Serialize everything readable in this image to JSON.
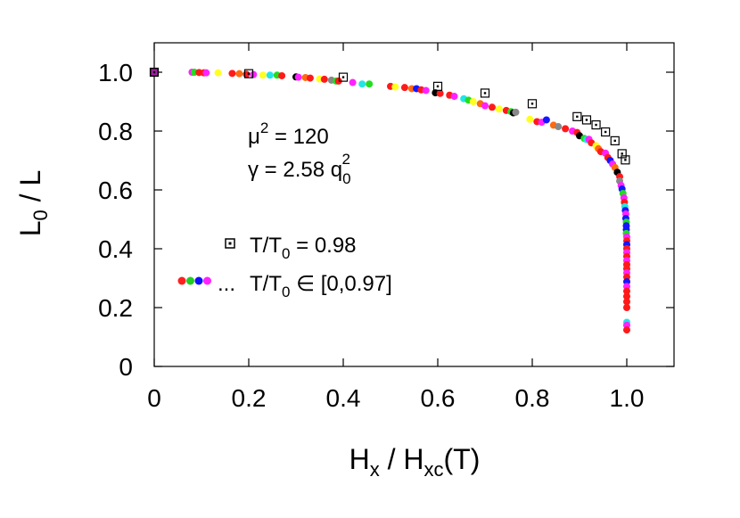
{
  "chart_data": {
    "type": "scatter",
    "xlabel": {
      "main": "H",
      "sub1": "x",
      "mid": " / H",
      "sub2": "xc",
      "tail": "(T)"
    },
    "ylabel": {
      "main": "L",
      "sub": "0",
      "tail": " / L"
    },
    "xlim": [
      0,
      1.1
    ],
    "ylim": [
      0,
      1.1
    ],
    "xticks": [
      {
        "value": 0,
        "label": "0"
      },
      {
        "value": 0.2,
        "label": "0.2"
      },
      {
        "value": 0.4,
        "label": "0.4"
      },
      {
        "value": 0.6,
        "label": "0.6"
      },
      {
        "value": 0.8,
        "label": "0.8"
      },
      {
        "value": 1.0,
        "label": "1.0"
      }
    ],
    "yticks": [
      {
        "value": 0,
        "label": "0"
      },
      {
        "value": 0.2,
        "label": "0.2"
      },
      {
        "value": 0.4,
        "label": "0.4"
      },
      {
        "value": 0.6,
        "label": "0.6"
      },
      {
        "value": 0.8,
        "label": "0.8"
      },
      {
        "value": 1.0,
        "label": "1.0"
      }
    ],
    "annotations": {
      "mu": {
        "symbol": "μ",
        "sup": "2",
        "rest": " = 120"
      },
      "gamma": {
        "symbol": "γ",
        "rest": " = 2.58 q",
        "sub": "0",
        "sup": "2"
      }
    },
    "legend": [
      {
        "marker": "open-square-dot",
        "label_main": "T/T",
        "label_sub": "0",
        "label_tail": " = 0.98"
      },
      {
        "marker": "multicolor-dots",
        "prefix": "...",
        "label_main": "T/T",
        "label_sub": "0",
        "label_tail": " ∈ [0,0.97]",
        "dot_colors": [
          "#ff2020",
          "#22cc22",
          "#1010ff",
          "#ff22ff"
        ]
      }
    ],
    "colors": {
      "red": "#ff1a1a",
      "green": "#22dd22",
      "blue": "#1515ff",
      "magenta": "#ff22ff",
      "cyan": "#22e5e5",
      "yellow": "#ffff22",
      "black": "#000000",
      "gray": "#888888",
      "orange": "#ff6a10",
      "purple": "#a020a0"
    },
    "series": [
      {
        "name": "T/T0 = 0.98",
        "marker": "open-square-dot",
        "points": [
          [
            0.0,
            1.0
          ],
          [
            0.2,
            0.995
          ],
          [
            0.4,
            0.983
          ],
          [
            0.6,
            0.952
          ],
          [
            0.7,
            0.929
          ],
          [
            0.8,
            0.893
          ],
          [
            0.895,
            0.849
          ],
          [
            0.915,
            0.838
          ],
          [
            0.935,
            0.821
          ],
          [
            0.955,
            0.797
          ],
          [
            0.975,
            0.767
          ],
          [
            0.99,
            0.723
          ],
          [
            0.997,
            0.702
          ]
        ]
      },
      {
        "name": "T/T0 ∈ [0,0.97]",
        "marker": "filled-circle",
        "points": [
          [
            0.0,
            1.0,
            "purple"
          ],
          [
            0.08,
            1.0,
            "magenta"
          ],
          [
            0.085,
            1.0,
            "green"
          ],
          [
            0.095,
            0.999,
            "red"
          ],
          [
            0.105,
            0.998,
            "red"
          ],
          [
            0.11,
            0.998,
            "magenta"
          ],
          [
            0.135,
            0.998,
            "yellow"
          ],
          [
            0.165,
            0.996,
            "red"
          ],
          [
            0.18,
            0.995,
            "orange"
          ],
          [
            0.195,
            0.993,
            "red"
          ],
          [
            0.21,
            0.992,
            "magenta"
          ],
          [
            0.23,
            0.99,
            "yellow"
          ],
          [
            0.245,
            0.99,
            "cyan"
          ],
          [
            0.26,
            0.99,
            "green"
          ],
          [
            0.27,
            0.988,
            "red"
          ],
          [
            0.3,
            0.984,
            "black"
          ],
          [
            0.305,
            0.983,
            "magenta"
          ],
          [
            0.32,
            0.982,
            "orange"
          ],
          [
            0.33,
            0.98,
            "red"
          ],
          [
            0.35,
            0.977,
            "yellow"
          ],
          [
            0.36,
            0.976,
            "red"
          ],
          [
            0.375,
            0.973,
            "gray"
          ],
          [
            0.385,
            0.97,
            "green"
          ],
          [
            0.39,
            0.97,
            "red"
          ],
          [
            0.42,
            0.965,
            "magenta"
          ],
          [
            0.44,
            0.96,
            "cyan"
          ],
          [
            0.455,
            0.96,
            "green"
          ],
          [
            0.5,
            0.952,
            "red"
          ],
          [
            0.51,
            0.95,
            "yellow"
          ],
          [
            0.53,
            0.948,
            "red"
          ],
          [
            0.545,
            0.944,
            "orange"
          ],
          [
            0.555,
            0.944,
            "blue"
          ],
          [
            0.565,
            0.94,
            "red"
          ],
          [
            0.575,
            0.938,
            "magenta"
          ],
          [
            0.595,
            0.93,
            "black"
          ],
          [
            0.605,
            0.928,
            "red"
          ],
          [
            0.625,
            0.922,
            "red"
          ],
          [
            0.635,
            0.918,
            "magenta"
          ],
          [
            0.655,
            0.91,
            "cyan"
          ],
          [
            0.665,
            0.905,
            "green"
          ],
          [
            0.675,
            0.9,
            "yellow"
          ],
          [
            0.69,
            0.893,
            "orange"
          ],
          [
            0.7,
            0.886,
            "magenta"
          ],
          [
            0.715,
            0.881,
            "red"
          ],
          [
            0.73,
            0.875,
            "yellow"
          ],
          [
            0.745,
            0.87,
            "red"
          ],
          [
            0.755,
            0.866,
            "green"
          ],
          [
            0.76,
            0.862,
            "black"
          ],
          [
            0.765,
            0.864,
            "gray"
          ],
          [
            0.795,
            0.84,
            "yellow"
          ],
          [
            0.81,
            0.832,
            "red"
          ],
          [
            0.82,
            0.83,
            "magenta"
          ],
          [
            0.83,
            0.838,
            "blue"
          ],
          [
            0.845,
            0.82,
            "orange"
          ],
          [
            0.855,
            0.815,
            "gray"
          ],
          [
            0.87,
            0.808,
            "red"
          ],
          [
            0.885,
            0.8,
            "magenta"
          ],
          [
            0.895,
            0.795,
            "red"
          ],
          [
            0.9,
            0.784,
            "black"
          ],
          [
            0.91,
            0.775,
            "green"
          ],
          [
            0.915,
            0.771,
            "cyan"
          ],
          [
            0.92,
            0.772,
            "magenta"
          ],
          [
            0.925,
            0.76,
            "red"
          ],
          [
            0.935,
            0.75,
            "yellow"
          ],
          [
            0.94,
            0.74,
            "orange"
          ],
          [
            0.945,
            0.73,
            "red"
          ],
          [
            0.955,
            0.725,
            "magenta"
          ],
          [
            0.96,
            0.71,
            "red"
          ],
          [
            0.965,
            0.7,
            "blue"
          ],
          [
            0.97,
            0.688,
            "magenta"
          ],
          [
            0.975,
            0.676,
            "orange"
          ],
          [
            0.98,
            0.66,
            "black"
          ],
          [
            0.985,
            0.645,
            "red"
          ],
          [
            0.985,
            0.63,
            "gray"
          ],
          [
            0.988,
            0.615,
            "magenta"
          ],
          [
            0.99,
            0.603,
            "blue"
          ],
          [
            0.992,
            0.588,
            "green"
          ],
          [
            0.994,
            0.573,
            "magenta"
          ],
          [
            0.995,
            0.558,
            "red"
          ],
          [
            0.996,
            0.543,
            "cyan"
          ],
          [
            0.997,
            0.53,
            "blue"
          ],
          [
            0.998,
            0.518,
            "magenta"
          ],
          [
            0.998,
            0.503,
            "blue"
          ],
          [
            0.999,
            0.49,
            "green"
          ],
          [
            0.999,
            0.478,
            "blue"
          ],
          [
            0.999,
            0.465,
            "blue"
          ],
          [
            0.999,
            0.452,
            "green"
          ],
          [
            1.0,
            0.44,
            "magenta"
          ],
          [
            1.0,
            0.427,
            "red"
          ],
          [
            1.0,
            0.414,
            "blue"
          ],
          [
            1.0,
            0.4,
            "red"
          ],
          [
            1.0,
            0.387,
            "magenta"
          ],
          [
            1.0,
            0.374,
            "red"
          ],
          [
            1.0,
            0.36,
            "magenta"
          ],
          [
            1.0,
            0.346,
            "red"
          ],
          [
            1.0,
            0.332,
            "red"
          ],
          [
            1.0,
            0.318,
            "magenta"
          ],
          [
            1.0,
            0.304,
            "red"
          ],
          [
            1.0,
            0.288,
            "blue"
          ],
          [
            1.0,
            0.272,
            "magenta"
          ],
          [
            1.0,
            0.256,
            "red"
          ],
          [
            1.0,
            0.238,
            "red"
          ],
          [
            1.0,
            0.22,
            "red"
          ],
          [
            1.0,
            0.2,
            "red"
          ],
          [
            1.0,
            0.15,
            "cyan"
          ],
          [
            1.0,
            0.14,
            "magenta"
          ],
          [
            1.0,
            0.124,
            "red"
          ]
        ]
      }
    ]
  }
}
